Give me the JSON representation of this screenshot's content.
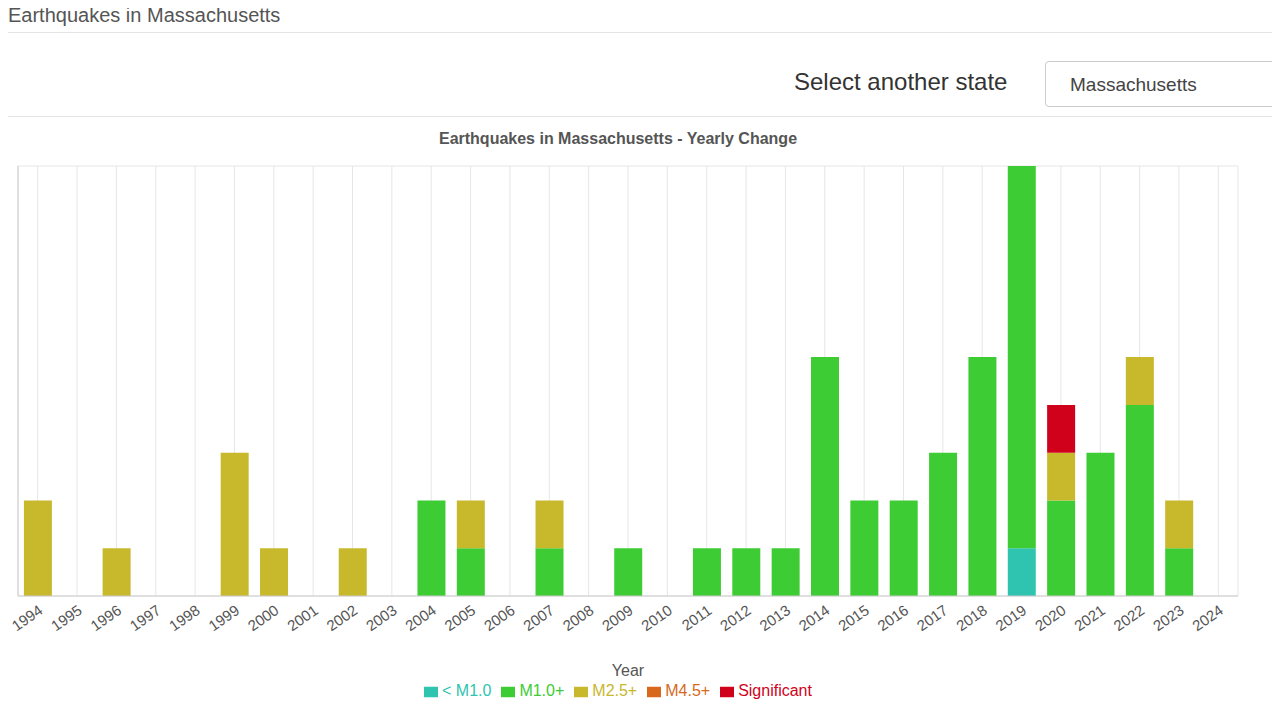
{
  "page": {
    "heading": "Earthquakes in Massachusetts",
    "select_label": "Select another state",
    "selected": "Massachusetts"
  },
  "chart_data": {
    "type": "bar",
    "title": "Earthquakes in Massachusetts - Yearly Change",
    "x_label": "Year",
    "categories": [
      "1994",
      "1995",
      "1996",
      "1997",
      "1998",
      "1999",
      "2000",
      "2001",
      "2002",
      "2003",
      "2004",
      "2005",
      "2006",
      "2007",
      "2008",
      "2009",
      "2010",
      "2011",
      "2012",
      "2013",
      "2014",
      "2015",
      "2016",
      "2017",
      "2018",
      "2019",
      "2020",
      "2021",
      "2022",
      "2023",
      "2024"
    ],
    "series": [
      {
        "name": "< M1.0",
        "color": "#2ec4b0",
        "values": [
          0,
          0,
          0,
          0,
          0,
          0,
          0,
          0,
          0,
          0,
          0,
          0,
          0,
          0,
          0,
          0,
          0,
          0,
          0,
          0,
          0,
          0,
          0,
          0,
          0,
          1,
          0,
          0,
          0,
          0,
          0
        ]
      },
      {
        "name": "M1.0+",
        "color": "#3dcc33",
        "values": [
          0,
          0,
          0,
          0,
          0,
          0,
          0,
          0,
          0,
          0,
          2,
          1,
          0,
          1,
          0,
          1,
          0,
          1,
          1,
          1,
          5,
          2,
          2,
          3,
          5,
          8,
          2,
          3,
          4,
          1,
          0
        ]
      },
      {
        "name": "M2.5+",
        "color": "#c8b82c",
        "values": [
          2,
          0,
          1,
          0,
          0,
          3,
          1,
          0,
          1,
          0,
          0,
          1,
          0,
          1,
          0,
          0,
          0,
          0,
          0,
          0,
          0,
          0,
          0,
          0,
          0,
          0,
          1,
          0,
          1,
          1,
          0
        ]
      },
      {
        "name": "M4.5+",
        "color": "#d8691c",
        "values": [
          0,
          0,
          0,
          0,
          0,
          0,
          0,
          0,
          0,
          0,
          0,
          0,
          0,
          0,
          0,
          0,
          0,
          0,
          0,
          0,
          0,
          0,
          0,
          0,
          0,
          0,
          0,
          0,
          0,
          0,
          0
        ]
      },
      {
        "name": "Significant",
        "color": "#d0021b",
        "values": [
          0,
          0,
          0,
          0,
          0,
          0,
          0,
          0,
          0,
          0,
          0,
          0,
          0,
          0,
          0,
          0,
          0,
          0,
          0,
          0,
          0,
          0,
          0,
          0,
          0,
          0,
          1,
          0,
          0,
          0,
          0
        ]
      }
    ],
    "ylim": [
      0,
      9
    ],
    "yticks": [
      0,
      1,
      2,
      3,
      4,
      5,
      6,
      7,
      8,
      9
    ],
    "stacked": true,
    "grid": true,
    "legend": "bottom",
    "tick_labels": "x"
  }
}
